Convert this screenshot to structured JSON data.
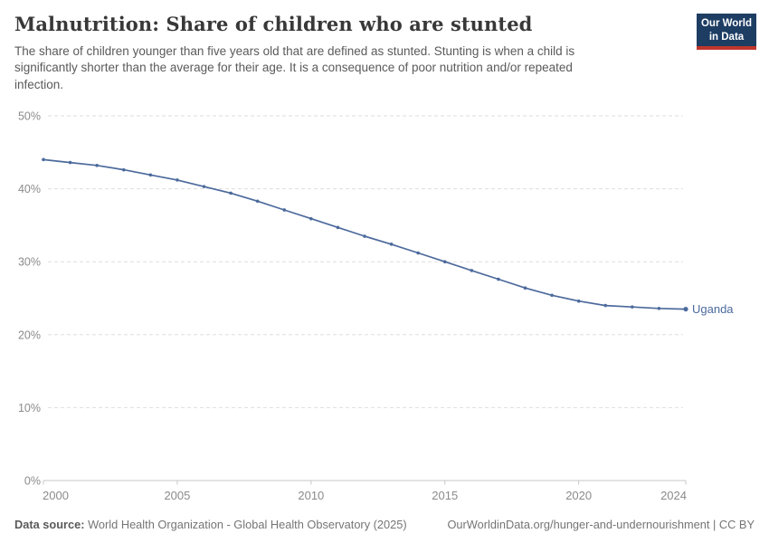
{
  "header": {
    "title": "Malnutrition: Share of children who are stunted",
    "subtitle": "The share of children younger than five years old that are defined as stunted. Stunting is when a child is significantly shorter than the average for their age. It is a consequence of poor nutrition and/or repeated infection."
  },
  "logo": {
    "line1": "Our World",
    "line2": "in Data"
  },
  "chart_data": {
    "type": "line",
    "title": "Malnutrition: Share of children who are stunted",
    "x": [
      2000,
      2001,
      2002,
      2003,
      2004,
      2005,
      2006,
      2007,
      2008,
      2009,
      2010,
      2011,
      2012,
      2013,
      2014,
      2015,
      2016,
      2017,
      2018,
      2019,
      2020,
      2021,
      2022,
      2023,
      2024
    ],
    "series": [
      {
        "name": "Uganda",
        "color": "#4c6a9c",
        "values": [
          44.0,
          43.6,
          43.2,
          42.6,
          41.9,
          41.2,
          40.3,
          39.4,
          38.3,
          37.1,
          35.9,
          34.7,
          33.5,
          32.4,
          31.2,
          30.0,
          28.8,
          27.6,
          26.4,
          25.4,
          24.6,
          24.0,
          23.8,
          23.6,
          23.5
        ]
      }
    ],
    "xlabel": "",
    "ylabel": "",
    "xlim": [
      2000,
      2024
    ],
    "ylim": [
      0,
      50
    ],
    "xticks": [
      2000,
      2005,
      2010,
      2015,
      2020,
      2024
    ],
    "yticks": [
      0,
      10,
      20,
      30,
      40,
      50
    ],
    "ytick_suffix": "%",
    "grid": "horizontal-dashed",
    "legend_position": "end-of-line-label",
    "end_label": "Uganda"
  },
  "footer": {
    "datasource_label": "Data source:",
    "datasource_value": " World Health Organization - Global Health Observatory (2025)",
    "link": "OurWorldinData.org/hunger-and-undernourishment | CC BY"
  },
  "colors": {
    "line": "#4c6a9c",
    "grid": "#dedede",
    "axis": "#c8c8c8",
    "tick_text": "#8b8b8b",
    "logo_navy": "#1d3d63",
    "logo_red": "#c0362c"
  }
}
